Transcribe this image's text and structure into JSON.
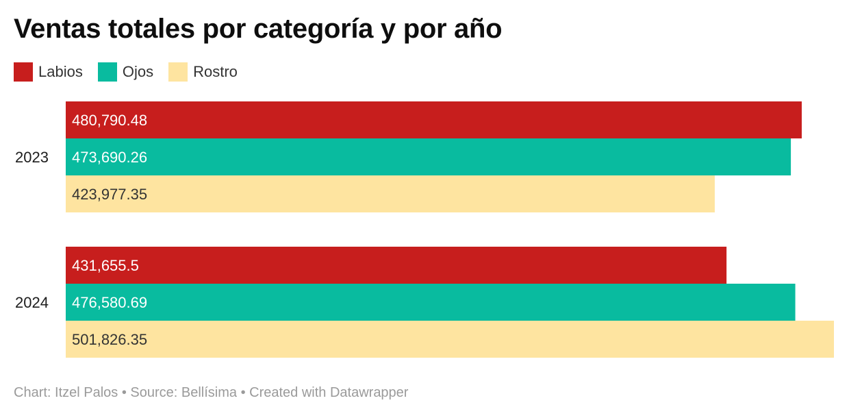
{
  "chart_data": {
    "type": "bar",
    "orientation": "horizontal",
    "title": "Ventas totales por categoría y por año",
    "categories": [
      "2023",
      "2024"
    ],
    "series": [
      {
        "name": "Labios",
        "color": "#c71e1d",
        "values": [
          480790.48,
          431655.5
        ],
        "labels": [
          "480,790.48",
          "431,655.5"
        ],
        "label_color": "#ffffff"
      },
      {
        "name": "Ojos",
        "color": "#09bb9f",
        "values": [
          473690.26,
          476580.69
        ],
        "labels": [
          "473,690.26",
          "476,580.69"
        ],
        "label_color": "#ffffff"
      },
      {
        "name": "Rostro",
        "color": "#fee4a0",
        "values": [
          423977.35,
          501826.35
        ],
        "labels": [
          "423,977.35",
          "501,826.35"
        ],
        "label_color": "#333333"
      }
    ],
    "xlim": [
      0,
      501826.35
    ],
    "grid": false,
    "legend_position": "top-left"
  },
  "footer": {
    "text": "Chart: Itzel Palos • Source: Bellísima • Created with Datawrapper"
  }
}
